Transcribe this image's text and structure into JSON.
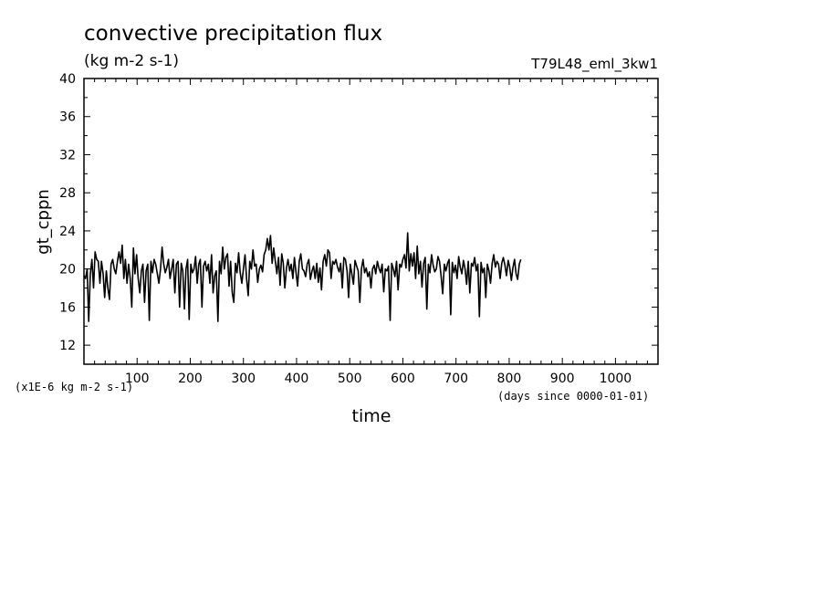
{
  "chart_data": {
    "type": "line",
    "title": "convective precipitation flux",
    "units": "(kg m-2 s-1)",
    "run_id": "T79L48_eml_3kw1",
    "ylabel": "gt_cppn",
    "xlabel": "time",
    "scale_note": "(x1E-6 kg m-2 s-1)",
    "time_note": "(days since 0000-01-01)",
    "xlim": [
      0,
      1080
    ],
    "ylim": [
      10,
      40
    ],
    "xticks": [
      100,
      200,
      300,
      400,
      500,
      600,
      700,
      800,
      900,
      1000
    ],
    "yticks": [
      12,
      16,
      20,
      24,
      28,
      32,
      36,
      40
    ],
    "xtick_labels": [
      "100",
      "200",
      "300",
      "400",
      "500",
      "600",
      "700",
      "800",
      "900",
      "1000"
    ],
    "ytick_labels": [
      "12",
      "16",
      "20",
      "24",
      "28",
      "32",
      "36",
      "40"
    ],
    "series": [
      {
        "name": "gt_cppn",
        "step_days": 3,
        "values": [
          19.3,
          19.0,
          20.0,
          14.5,
          19.5,
          21.0,
          18.0,
          21.8,
          21.0,
          20.8,
          18.5,
          20.8,
          19.5,
          17.0,
          19.8,
          18.0,
          16.8,
          20.5,
          21.0,
          20.0,
          19.5,
          20.8,
          21.8,
          20.6,
          22.5,
          19.0,
          21.0,
          18.5,
          20.5,
          19.0,
          16.0,
          22.2,
          19.5,
          21.5,
          19.0,
          17.5,
          19.8,
          20.5,
          16.5,
          19.8,
          20.5,
          14.6,
          20.8,
          19.6,
          21.0,
          20.5,
          19.5,
          18.5,
          20.0,
          22.3,
          20.5,
          19.6,
          20.2,
          21.0,
          19.0,
          20.0,
          21.0,
          17.5,
          20.5,
          20.8,
          16.0,
          20.6,
          19.8,
          15.8,
          20.0,
          21.0,
          14.7,
          20.5,
          19.6,
          20.0,
          21.3,
          18.5,
          20.5,
          21.0,
          16.0,
          20.3,
          20.8,
          19.8,
          20.5,
          18.5,
          21.5,
          17.5,
          19.3,
          19.8,
          14.5,
          20.8,
          19.5,
          22.3,
          20.0,
          21.2,
          21.6,
          18.2,
          20.8,
          17.5,
          16.5,
          20.6,
          19.6,
          21.7,
          19.6,
          18.5,
          20.0,
          21.5,
          19.0,
          17.2,
          20.8,
          20.0,
          22.0,
          20.3,
          20.5,
          18.6,
          20.0,
          20.4,
          19.7,
          21.5,
          22.0,
          23.2,
          22.0,
          23.5,
          20.6,
          22.2,
          20.8,
          19.5,
          21.2,
          18.3,
          21.6,
          20.6,
          18.0,
          20.1,
          21.0,
          19.8,
          20.5,
          19.0,
          21.2,
          19.6,
          18.2,
          20.8,
          21.6,
          20.0,
          19.8,
          19.2,
          20.5,
          21.0,
          18.9,
          19.8,
          20.3,
          19.0,
          20.6,
          18.6,
          20.1,
          17.8,
          20.8,
          21.5,
          20.3,
          22.0,
          21.7,
          19.0,
          20.8,
          20.5,
          21.0,
          20.2,
          19.7,
          20.6,
          18.0,
          21.2,
          21.0,
          19.8,
          17.0,
          20.5,
          19.5,
          18.4,
          20.9,
          20.3,
          19.8,
          16.5,
          20.0,
          21.0,
          19.6,
          20.1,
          19.2,
          19.7,
          18.0,
          20.0,
          20.4,
          19.5,
          20.8,
          20.1,
          19.6,
          20.5,
          17.6,
          20.0,
          19.8,
          20.3,
          14.6,
          20.6,
          20.0,
          19.2,
          20.8,
          17.8,
          20.5,
          20.2,
          21.0,
          21.5,
          20.1,
          23.8,
          19.8,
          21.6,
          20.3,
          21.7,
          19.0,
          22.4,
          19.5,
          20.8,
          18.1,
          20.6,
          21.2,
          15.8,
          20.5,
          19.6,
          21.5,
          20.4,
          19.7,
          20.0,
          21.3,
          20.8,
          19.2,
          17.4,
          20.5,
          19.8,
          20.6,
          21.0,
          15.2,
          20.7,
          19.6,
          20.4,
          19.0,
          21.3,
          20.2,
          19.5,
          20.9,
          20.0,
          18.4,
          20.8,
          17.5,
          20.6,
          20.3,
          21.2,
          19.8,
          20.5,
          15.0,
          20.7,
          19.6,
          20.1,
          17.0,
          20.5,
          19.8,
          18.5,
          20.6,
          21.5,
          20.2,
          20.8,
          20.5,
          19.0,
          20.6,
          21.2,
          20.4,
          19.3,
          20.9,
          20.2,
          18.8,
          20.1,
          21.0,
          19.5,
          18.9,
          20.5,
          21.0
        ]
      }
    ]
  }
}
